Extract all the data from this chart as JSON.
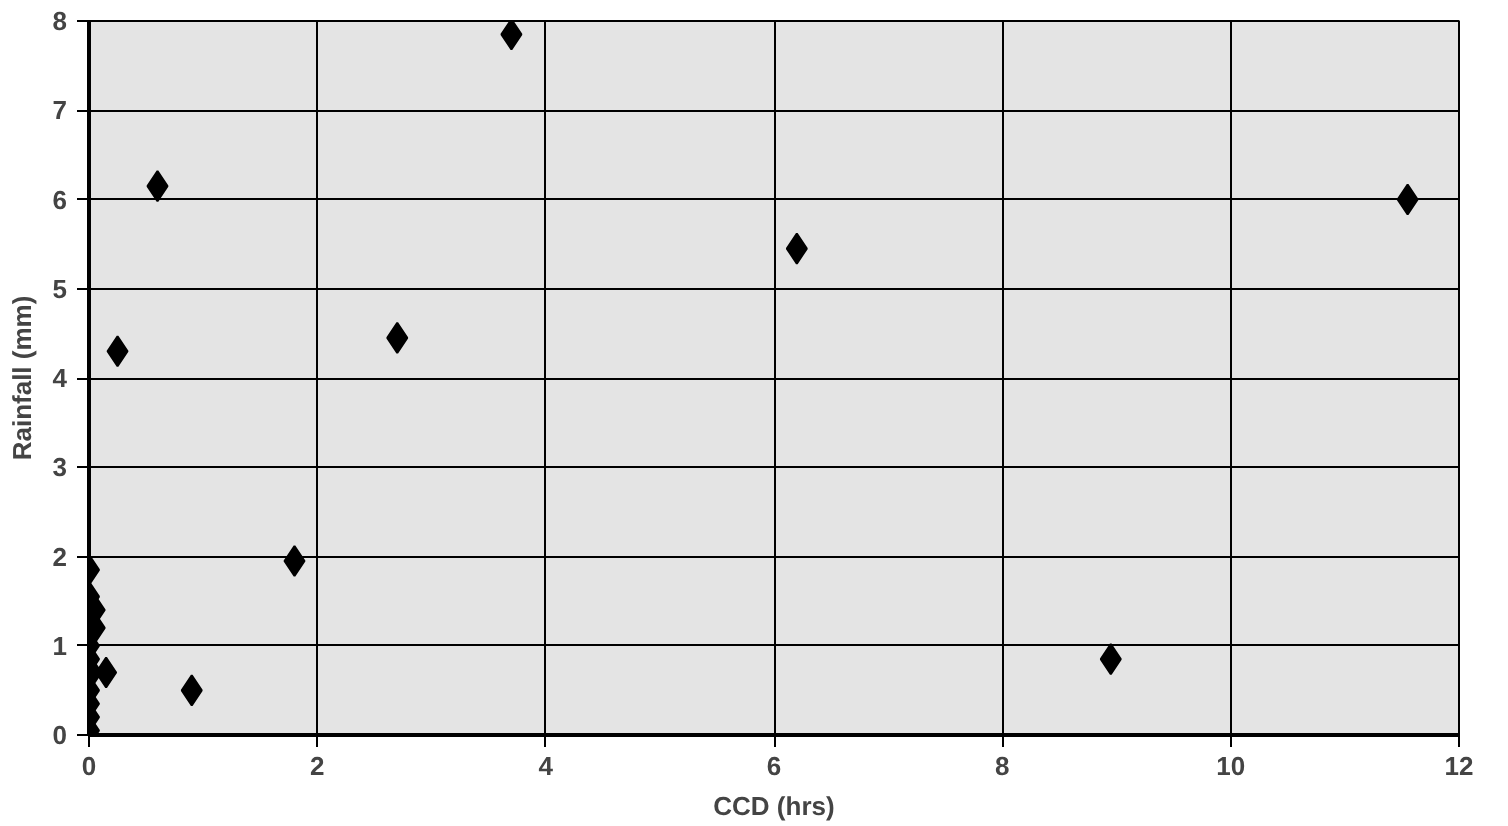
{
  "chart_data": {
    "type": "scatter",
    "xlabel": "CCD (hrs)",
    "ylabel": "Rainfall (mm)",
    "x": [
      0,
      0,
      0.05,
      0.05,
      0,
      0,
      0.02,
      0,
      0,
      0,
      0,
      0.15,
      0.25,
      0.6,
      0.9,
      1.8,
      2.7,
      3.7,
      6.2,
      8.95,
      11.55
    ],
    "values": [
      1.85,
      1.55,
      1.4,
      1.2,
      1.0,
      0.85,
      0.7,
      0.5,
      0.35,
      0.2,
      0.05,
      0.7,
      4.3,
      6.15,
      0.5,
      1.95,
      4.45,
      7.85,
      5.45,
      0.85,
      6.0
    ],
    "color": "#000000",
    "marker": "diamond",
    "xlim": [
      0,
      12
    ],
    "ylim": [
      0,
      8
    ],
    "xticks": [
      0,
      2,
      4,
      6,
      8,
      10,
      12
    ],
    "yticks": [
      0,
      1,
      2,
      3,
      4,
      5,
      6,
      7,
      8
    ],
    "grid": true
  }
}
